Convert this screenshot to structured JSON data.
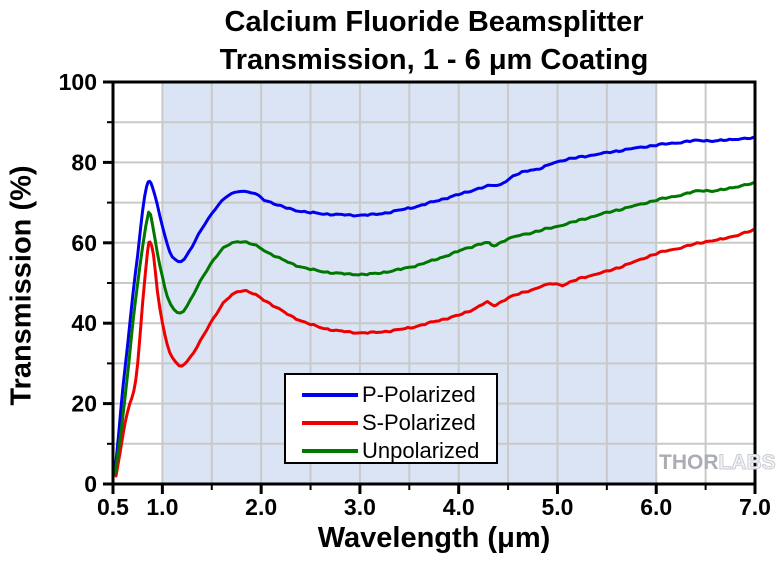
{
  "chart_data": {
    "type": "line",
    "title_line1": "Calcium Fluoride Beamsplitter",
    "title_line2": "Transmission, 1 - 6 μm Coating",
    "xlabel": "Wavelength (μm)",
    "ylabel": "Transmission (%)",
    "xlim": [
      0.5,
      7.0
    ],
    "ylim": [
      0,
      100
    ],
    "x_major_ticks": [
      0.5,
      1.0,
      2.0,
      3.0,
      4.0,
      5.0,
      6.0,
      7.0
    ],
    "x_tick_labels": [
      "0.5",
      "1.0",
      "2.0",
      "3.0",
      "4.0",
      "5.0",
      "6.0",
      "7.0"
    ],
    "x_minor_ticks": [
      1.5,
      2.5,
      3.5,
      4.5,
      5.5,
      6.5
    ],
    "y_major_ticks": [
      0,
      20,
      40,
      60,
      80,
      100
    ],
    "y_tick_labels": [
      "0",
      "20",
      "40",
      "60",
      "80",
      "100"
    ],
    "y_minor_ticks": [
      10,
      30,
      50,
      70,
      90
    ],
    "grid": {
      "on": true,
      "x_step": 0.5,
      "y_step": 10,
      "color": "#c9c9c9"
    },
    "shaded_band": {
      "from": 1.0,
      "to": 6.0,
      "color": "#dbe4f4",
      "meaning": "1 - 6 μm coating range"
    },
    "frame_color": "#000000",
    "legend_position": "inside-bottom-center",
    "series": [
      {
        "name": "P-Polarized",
        "color": "#0000ee",
        "points": [
          [
            0.52,
            3
          ],
          [
            0.56,
            13
          ],
          [
            0.6,
            24
          ],
          [
            0.65,
            35
          ],
          [
            0.7,
            47
          ],
          [
            0.75,
            57
          ],
          [
            0.8,
            68
          ],
          [
            0.84,
            74
          ],
          [
            0.87,
            75.3
          ],
          [
            0.9,
            73.8
          ],
          [
            0.95,
            69.5
          ],
          [
            1.0,
            64
          ],
          [
            1.05,
            59.5
          ],
          [
            1.1,
            56.5
          ],
          [
            1.16,
            55.4
          ],
          [
            1.22,
            56
          ],
          [
            1.3,
            59
          ],
          [
            1.4,
            63.5
          ],
          [
            1.5,
            67.3
          ],
          [
            1.6,
            70.3
          ],
          [
            1.7,
            72.2
          ],
          [
            1.8,
            72.9
          ],
          [
            1.9,
            72.4
          ],
          [
            1.97,
            71.8
          ],
          [
            2.03,
            70.7
          ],
          [
            2.1,
            70.1
          ],
          [
            2.2,
            69.1
          ],
          [
            2.35,
            68.1
          ],
          [
            2.5,
            67.5
          ],
          [
            2.7,
            67.1
          ],
          [
            2.9,
            66.9
          ],
          [
            3.05,
            66.9
          ],
          [
            3.2,
            67.2
          ],
          [
            3.4,
            68.1
          ],
          [
            3.6,
            69.2
          ],
          [
            3.8,
            70.6
          ],
          [
            4.0,
            72.0
          ],
          [
            4.2,
            73.5
          ],
          [
            4.32,
            74.2
          ],
          [
            4.42,
            74.5
          ],
          [
            4.55,
            76.5
          ],
          [
            4.7,
            78.0
          ],
          [
            4.82,
            78.4
          ],
          [
            5.0,
            80.2
          ],
          [
            5.25,
            81.4
          ],
          [
            5.5,
            82.4
          ],
          [
            5.75,
            83.4
          ],
          [
            6.0,
            84.3
          ],
          [
            6.25,
            85.0
          ],
          [
            6.45,
            85.5
          ],
          [
            6.6,
            85.3
          ],
          [
            6.8,
            85.8
          ],
          [
            7.0,
            86.0
          ]
        ]
      },
      {
        "name": "S-Polarized",
        "color": "#ee0000",
        "points": [
          [
            0.53,
            2
          ],
          [
            0.58,
            9
          ],
          [
            0.62,
            15
          ],
          [
            0.67,
            20
          ],
          [
            0.71,
            23
          ],
          [
            0.75,
            30
          ],
          [
            0.8,
            45
          ],
          [
            0.85,
            58
          ],
          [
            0.875,
            60.2
          ],
          [
            0.91,
            57
          ],
          [
            0.95,
            48
          ],
          [
            1.0,
            40
          ],
          [
            1.05,
            34.5
          ],
          [
            1.1,
            31.5
          ],
          [
            1.17,
            29.5
          ],
          [
            1.25,
            30.5
          ],
          [
            1.35,
            34
          ],
          [
            1.45,
            38.5
          ],
          [
            1.55,
            42.5
          ],
          [
            1.65,
            45.8
          ],
          [
            1.76,
            47.9
          ],
          [
            1.85,
            48.0
          ],
          [
            1.92,
            47.3
          ],
          [
            2.0,
            46.2
          ],
          [
            2.15,
            44.0
          ],
          [
            2.3,
            41.8
          ],
          [
            2.5,
            39.7
          ],
          [
            2.7,
            38.4
          ],
          [
            2.9,
            37.8
          ],
          [
            3.05,
            37.6
          ],
          [
            3.2,
            37.8
          ],
          [
            3.4,
            38.4
          ],
          [
            3.6,
            39.4
          ],
          [
            3.8,
            40.7
          ],
          [
            4.0,
            42.0
          ],
          [
            4.15,
            43.5
          ],
          [
            4.29,
            45.2
          ],
          [
            4.36,
            44.4
          ],
          [
            4.5,
            46.3
          ],
          [
            4.7,
            48.0
          ],
          [
            4.95,
            49.9
          ],
          [
            5.05,
            49.5
          ],
          [
            5.25,
            51.3
          ],
          [
            5.5,
            52.9
          ],
          [
            5.75,
            55.0
          ],
          [
            6.0,
            57.3
          ],
          [
            6.25,
            58.8
          ],
          [
            6.5,
            60.3
          ],
          [
            6.65,
            60.8
          ],
          [
            6.8,
            61.8
          ],
          [
            7.0,
            63.2
          ]
        ]
      },
      {
        "name": "Unpolarized",
        "color": "#007700",
        "points": [
          [
            0.52,
            2.5
          ],
          [
            0.57,
            11
          ],
          [
            0.61,
            19
          ],
          [
            0.66,
            30
          ],
          [
            0.7,
            40
          ],
          [
            0.75,
            50
          ],
          [
            0.8,
            59
          ],
          [
            0.86,
            67.6
          ],
          [
            0.9,
            64.5
          ],
          [
            0.95,
            57.5
          ],
          [
            1.0,
            51.5
          ],
          [
            1.05,
            46.5
          ],
          [
            1.12,
            43.3
          ],
          [
            1.18,
            42.6
          ],
          [
            1.25,
            44.3
          ],
          [
            1.35,
            48.8
          ],
          [
            1.45,
            53.2
          ],
          [
            1.55,
            56.8
          ],
          [
            1.65,
            59.2
          ],
          [
            1.76,
            60.3
          ],
          [
            1.85,
            60.1
          ],
          [
            1.95,
            59.2
          ],
          [
            2.1,
            57.2
          ],
          [
            2.3,
            54.9
          ],
          [
            2.5,
            53.4
          ],
          [
            2.7,
            52.6
          ],
          [
            2.9,
            52.2
          ],
          [
            3.1,
            52.2
          ],
          [
            3.3,
            52.9
          ],
          [
            3.5,
            53.9
          ],
          [
            3.7,
            55.3
          ],
          [
            3.9,
            57.0
          ],
          [
            4.1,
            58.8
          ],
          [
            4.28,
            60.0
          ],
          [
            4.36,
            59.3
          ],
          [
            4.5,
            61.0
          ],
          [
            4.75,
            62.6
          ],
          [
            5.0,
            64.1
          ],
          [
            5.25,
            65.8
          ],
          [
            5.5,
            67.5
          ],
          [
            5.75,
            69.0
          ],
          [
            6.0,
            70.6
          ],
          [
            6.25,
            71.9
          ],
          [
            6.45,
            73.0
          ],
          [
            6.6,
            72.9
          ],
          [
            6.8,
            73.9
          ],
          [
            7.0,
            74.8
          ]
        ]
      }
    ],
    "watermark": {
      "solid_part": "THOR",
      "outline_part": "LABS"
    }
  }
}
